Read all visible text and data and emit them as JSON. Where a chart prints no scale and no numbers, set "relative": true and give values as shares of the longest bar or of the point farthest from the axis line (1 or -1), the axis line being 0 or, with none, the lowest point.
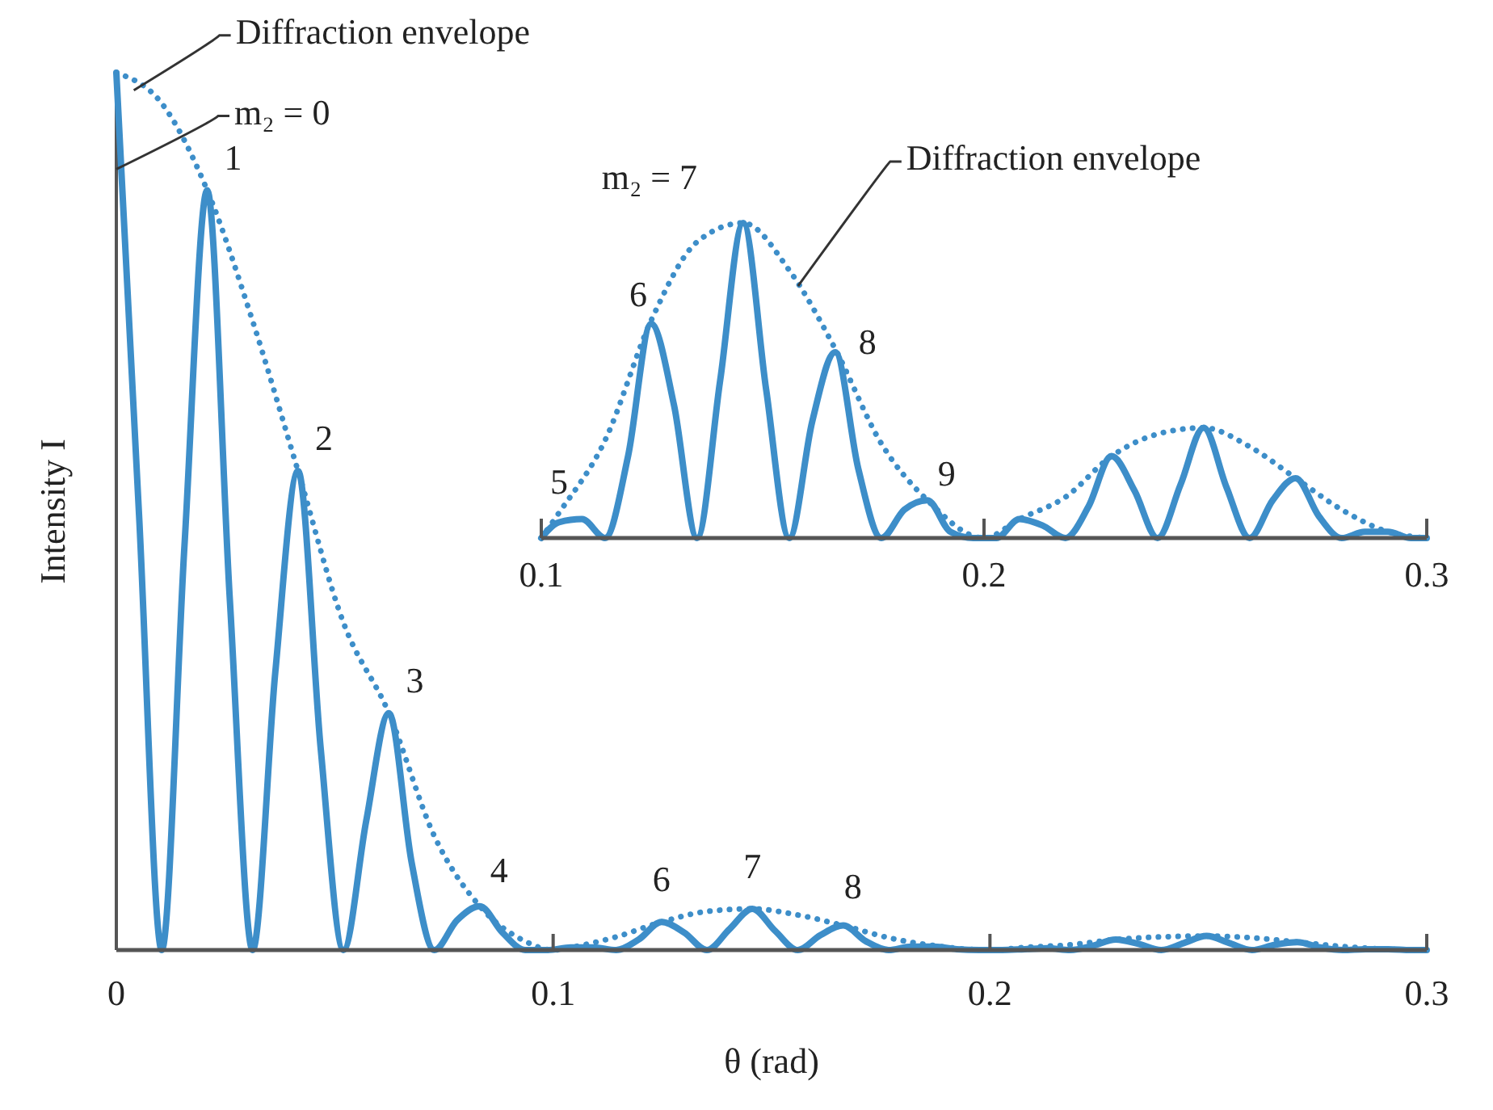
{
  "chart_data": [
    {
      "type": "line",
      "xlabel": "θ (rad)",
      "ylabel": "Intensity I",
      "relative": true,
      "xlim": [
        0,
        0.3
      ],
      "xticks": [
        0,
        0.1,
        0.2,
        0.3
      ],
      "tick_labels": "x",
      "series": [
        {
          "color": "#3d8ec9",
          "line_style": "solid",
          "x": [
            0,
            0.0052,
            0.0104,
            0.0156,
            0.0208,
            0.026,
            0.0312,
            0.0364,
            0.0416,
            0.0468,
            0.052,
            0.0572,
            0.0624,
            0.0676,
            0.0728,
            0.078,
            0.0832,
            0.0884,
            0.0936,
            0.0988,
            0.104,
            0.1092,
            0.1144,
            0.1196,
            0.1248,
            0.13,
            0.1352,
            0.1404,
            0.1456,
            0.1508,
            0.156,
            0.1612,
            0.1664,
            0.1716,
            0.1768,
            0.182,
            0.1872,
            0.1924,
            0.1976,
            0.2028,
            0.208,
            0.2132,
            0.2184,
            0.2236,
            0.2288,
            0.234,
            0.2392,
            0.2444,
            0.2496,
            0.2548,
            0.26,
            0.2652,
            0.2704,
            0.2756,
            0.2808,
            0.286,
            0.2912,
            0.2964,
            0.3
          ],
          "values": [
            1,
            0.496,
            0,
            0.461,
            0.866,
            0.398,
            0,
            0.317,
            0.546,
            0.229,
            0,
            0.147,
            0.27,
            0.1,
            0,
            0.034,
            0.05,
            0.02,
            0,
            0,
            0.003,
            0.003,
            0,
            0.012,
            0.032,
            0.02,
            0,
            0.024,
            0.047,
            0.022,
            0,
            0.017,
            0.028,
            0.01,
            0,
            0.004,
            0.004,
            0.001,
            0,
            0,
            0.001,
            0.002,
            0,
            0.005,
            0.012,
            0.007,
            0,
            0.008,
            0.016,
            0.008,
            0,
            0.006,
            0.009,
            0.003,
            0,
            0.001,
            0.001,
            0,
            0
          ]
        },
        {
          "color": "#3d8ec9",
          "line_style": "dotted",
          "x": [
            0,
            0.0104,
            0.0208,
            0.0312,
            0.0416,
            0.052,
            0.0624,
            0.0728,
            0.0832,
            0.0936,
            0.1,
            0.104,
            0.1144,
            0.1248,
            0.1352,
            0.1456,
            0.156,
            0.1664,
            0.1768,
            0.1872,
            0.2,
            0.208,
            0.2184,
            0.2288,
            0.2392,
            0.2496,
            0.26,
            0.2704,
            0.2808,
            0.2912,
            0.3
          ],
          "values": [
            1,
            0.965,
            0.866,
            0.717,
            0.546,
            0.373,
            0.27,
            0.13,
            0.05,
            0.01,
            0,
            0.003,
            0.015,
            0.032,
            0.044,
            0.047,
            0.04,
            0.028,
            0.014,
            0.005,
            0,
            0.003,
            0.006,
            0.012,
            0.015,
            0.016,
            0.014,
            0.009,
            0.004,
            0.001,
            0
          ]
        }
      ],
      "annotations": [
        {
          "text": "Diffraction envelope",
          "x": 0.004,
          "y": 0.98
        },
        {
          "text": "m₂ = 0",
          "x": 0,
          "y": 0.89
        },
        {
          "text": "1",
          "x": 0.0208,
          "y": 0.866
        },
        {
          "text": "2",
          "x": 0.0416,
          "y": 0.546
        },
        {
          "text": "3",
          "x": 0.0624,
          "y": 0.27
        },
        {
          "text": "4",
          "x": 0.0832,
          "y": 0.05
        },
        {
          "text": "6",
          "x": 0.1248,
          "y": 0.032
        },
        {
          "text": "7",
          "x": 0.1456,
          "y": 0.047
        },
        {
          "text": "8",
          "x": 0.1664,
          "y": 0.028
        }
      ]
    },
    {
      "type": "line",
      "relative": true,
      "xlim": [
        0.1,
        0.3
      ],
      "xticks": [
        0.1,
        0.2,
        0.3
      ],
      "tick_labels": "x",
      "series": [
        {
          "color": "#3d8ec9",
          "line_style": "solid",
          "x": [
            0.1,
            0.104,
            0.1092,
            0.1144,
            0.1196,
            0.1248,
            0.13,
            0.1352,
            0.1404,
            0.1456,
            0.1508,
            0.156,
            0.1612,
            0.1664,
            0.1716,
            0.1768,
            0.182,
            0.1872,
            0.1924,
            0.1976,
            0.2028,
            0.208,
            0.2132,
            0.2184,
            0.2236,
            0.2288,
            0.234,
            0.2392,
            0.2444,
            0.2496,
            0.2548,
            0.26,
            0.2652,
            0.2704,
            0.2756,
            0.2808,
            0.286,
            0.2912,
            0.2964,
            0.3
          ],
          "values": [
            0,
            0.05,
            0.06,
            0,
            0.26,
            0.68,
            0.42,
            0,
            0.5,
            1,
            0.47,
            0,
            0.37,
            0.59,
            0.22,
            0,
            0.09,
            0.12,
            0.02,
            0,
            0,
            0.06,
            0.04,
            0,
            0.1,
            0.26,
            0.15,
            0,
            0.17,
            0.35,
            0.16,
            0,
            0.12,
            0.19,
            0.07,
            0,
            0.02,
            0.02,
            0,
            0
          ]
        },
        {
          "color": "#3d8ec9",
          "line_style": "dotted",
          "x": [
            0.1,
            0.104,
            0.1144,
            0.1248,
            0.1352,
            0.1456,
            0.156,
            0.1664,
            0.1768,
            0.1872,
            0.2,
            0.208,
            0.2184,
            0.2288,
            0.2392,
            0.2496,
            0.26,
            0.2704,
            0.2808,
            0.2912,
            0.3
          ],
          "values": [
            0,
            0.08,
            0.31,
            0.69,
            0.94,
            1,
            0.85,
            0.6,
            0.3,
            0.12,
            0,
            0.06,
            0.13,
            0.26,
            0.33,
            0.35,
            0.29,
            0.19,
            0.09,
            0.02,
            0
          ]
        }
      ],
      "annotations": [
        {
          "text": "m₂ = 7",
          "x": 0.1456,
          "y": 1
        },
        {
          "text": "Diffraction envelope",
          "x": 0.158,
          "y": 0.8
        },
        {
          "text": "5",
          "x": 0.104,
          "y": 0.05
        },
        {
          "text": "6",
          "x": 0.1248,
          "y": 0.68
        },
        {
          "text": "8",
          "x": 0.1664,
          "y": 0.59
        },
        {
          "text": "9",
          "x": 0.1872,
          "y": 0.12
        }
      ]
    }
  ]
}
